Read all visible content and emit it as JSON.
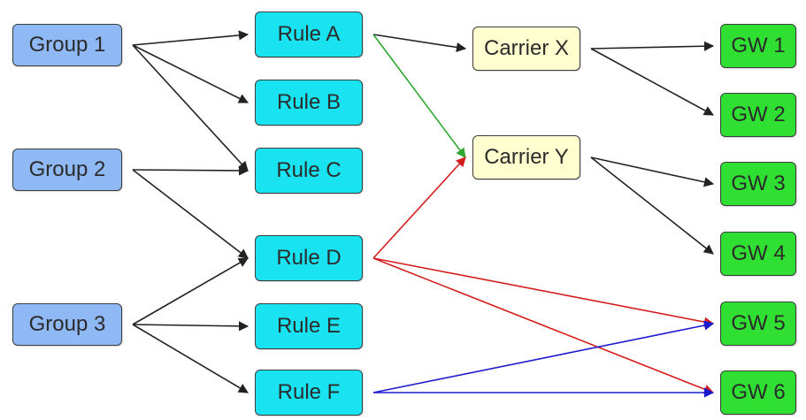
{
  "colors": {
    "group": "#8fb9f5",
    "rule": "#19e3f1",
    "carrier": "#ffffcf",
    "gw": "#2fe033",
    "edge_default": "#222222",
    "edge_green": "#2ea82e",
    "edge_red": "#d41e1e",
    "edge_blue": "#1a1acf"
  },
  "nodes": {
    "group1": "Group 1",
    "group2": "Group 2",
    "group3": "Group 3",
    "ruleA": "Rule A",
    "ruleB": "Rule B",
    "ruleC": "Rule C",
    "ruleD": "Rule D",
    "ruleE": "Rule E",
    "ruleF": "Rule F",
    "carrierX": "Carrier X",
    "carrierY": "Carrier Y",
    "gw1": "GW 1",
    "gw2": "GW 2",
    "gw3": "GW 3",
    "gw4": "GW 4",
    "gw5": "GW 5",
    "gw6": "GW 6"
  },
  "edges": [
    {
      "from": "group1",
      "to": "ruleA",
      "color": "edge_default"
    },
    {
      "from": "group1",
      "to": "ruleB",
      "color": "edge_default"
    },
    {
      "from": "group1",
      "to": "ruleC",
      "color": "edge_default"
    },
    {
      "from": "group2",
      "to": "ruleC",
      "color": "edge_default"
    },
    {
      "from": "group2",
      "to": "ruleD",
      "color": "edge_default"
    },
    {
      "from": "group3",
      "to": "ruleD",
      "color": "edge_default"
    },
    {
      "from": "group3",
      "to": "ruleE",
      "color": "edge_default"
    },
    {
      "from": "group3",
      "to": "ruleF",
      "color": "edge_default"
    },
    {
      "from": "ruleA",
      "to": "carrierX",
      "color": "edge_default"
    },
    {
      "from": "ruleA",
      "to": "carrierY",
      "color": "edge_green"
    },
    {
      "from": "ruleD",
      "to": "carrierY",
      "color": "edge_red"
    },
    {
      "from": "ruleD",
      "to": "gw5",
      "color": "edge_red"
    },
    {
      "from": "ruleD",
      "to": "gw6",
      "color": "edge_red"
    },
    {
      "from": "ruleF",
      "to": "gw5",
      "color": "edge_blue"
    },
    {
      "from": "ruleF",
      "to": "gw6",
      "color": "edge_blue"
    },
    {
      "from": "carrierX",
      "to": "gw1",
      "color": "edge_default"
    },
    {
      "from": "carrierX",
      "to": "gw2",
      "color": "edge_default"
    },
    {
      "from": "carrierY",
      "to": "gw3",
      "color": "edge_default"
    },
    {
      "from": "carrierY",
      "to": "gw4",
      "color": "edge_default"
    }
  ]
}
